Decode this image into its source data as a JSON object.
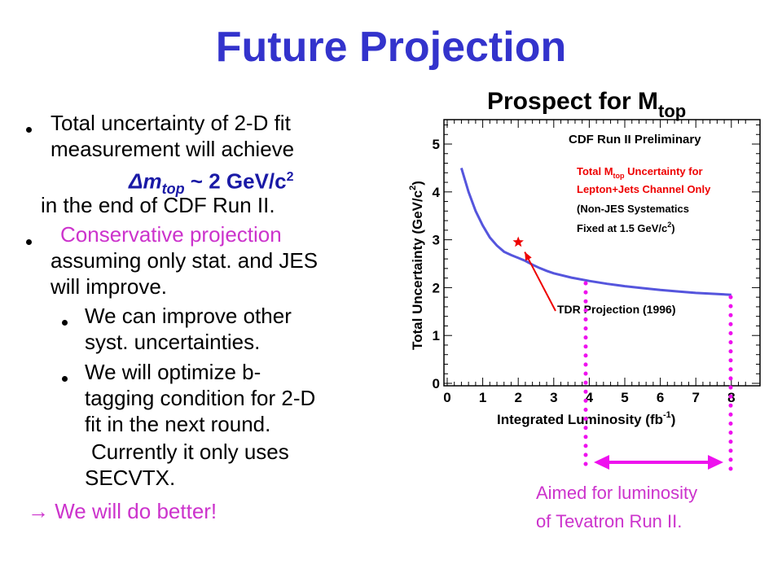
{
  "slide": {
    "title": "Future Projection",
    "bullets": [
      {
        "line1": "Total uncertainty of 2-D fit",
        "line2": "measurement will achieve"
      },
      {
        "line1": "Conservative projection",
        "line2": "assuming only stat. and JES",
        "line3": "will improve."
      }
    ],
    "formula": {
      "prefix": "Δm",
      "subscript": "top",
      "approx": "~ 2 GeV/c",
      "superscript": "2"
    },
    "formula_tail": "in the end of CDF Run II.",
    "subbullets": [
      {
        "line1": "We can improve other",
        "line2": "syst. uncertainties."
      },
      {
        "line1": "We will optimize b-",
        "line2": "tagging condition for 2-D",
        "line3": "fit in the next round."
      }
    ],
    "continuation": {
      "line1": "Currently it only uses",
      "line2": "SECVTX."
    },
    "conclusion": "→ We will do better!",
    "annotation": {
      "line1": "Aimed for luminosity",
      "line2": "of Tevatron Run II."
    }
  },
  "chart_title": {
    "main": "Prospect for M",
    "subscript": "top"
  },
  "chart_data": {
    "type": "line",
    "xlabel": "Integrated Luminosity (fb",
    "xlabel_sup": "-1",
    "xlabel_close": ")",
    "ylabel": "Total Uncertainty (GeV/c",
    "ylabel_sup": "2",
    "ylabel_close": ")",
    "xlim": [
      0,
      8.5
    ],
    "ylim": [
      0,
      5.5
    ],
    "xticks": [
      "0",
      "1",
      "2",
      "3",
      "4",
      "5",
      "6",
      "7",
      "8"
    ],
    "yticks": [
      "0",
      "1",
      "2",
      "3",
      "4",
      "5"
    ],
    "series": [
      {
        "x": [
          0.4,
          0.6,
          0.8,
          1.0,
          1.2,
          1.4,
          1.6,
          1.8,
          2.0,
          2.2,
          2.4,
          2.6,
          2.8,
          3.0,
          3.5,
          4.0,
          4.5,
          5.0,
          5.5,
          6.0,
          6.5,
          7.0,
          7.5,
          8.0
        ],
        "y": [
          4.5,
          4.0,
          3.6,
          3.3,
          3.05,
          2.88,
          2.75,
          2.68,
          2.62,
          2.56,
          2.48,
          2.41,
          2.35,
          2.3,
          2.21,
          2.14,
          2.08,
          2.03,
          1.99,
          1.95,
          1.92,
          1.89,
          1.87,
          1.85
        ],
        "color": "#5555dd"
      }
    ],
    "marker": {
      "x": 2.0,
      "y": 2.95,
      "label": "TDR Projection (1996)"
    },
    "legend_lines": [
      {
        "text": "CDF Run II Preliminary",
        "color": "#000000"
      },
      {
        "text": "Total M",
        "sub": "top",
        "tail": " Uncertainty for",
        "color": "#ee0000"
      },
      {
        "text": "Lepton+Jets Channel Only",
        "color": "#ee0000"
      },
      {
        "text": "(Non-JES Systematics",
        "color": "#000000"
      },
      {
        "text": "Fixed at 1.5 GeV/c",
        "sup": "2",
        "tail": ")",
        "color": "#000000"
      }
    ],
    "vertical_markers_x": [
      4,
      8
    ],
    "colors": {
      "curve": "#5555dd",
      "arrow": "#ee0000",
      "dots": "#ee11ee",
      "range_arrow": "#ee11ee"
    }
  }
}
